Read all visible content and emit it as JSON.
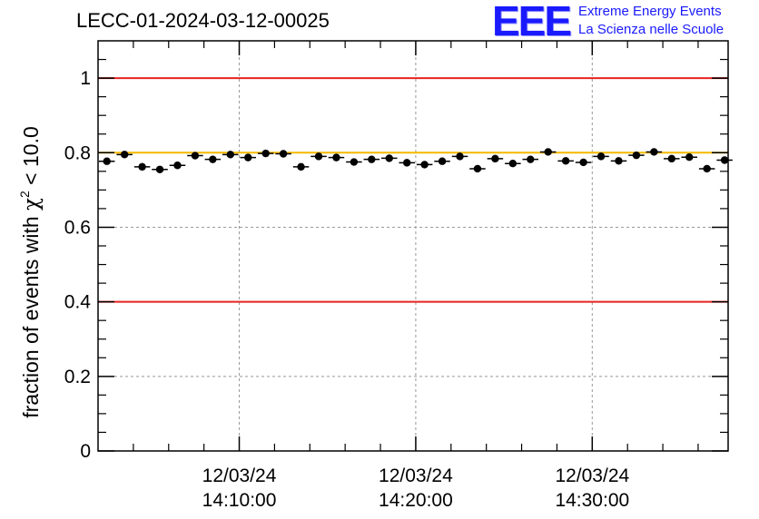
{
  "title": "LECC-01-2024-03-12-00025",
  "logo": {
    "mark": "EEE",
    "line1": "Extreme Energy Events",
    "line2": "La Scienza nelle Scuole"
  },
  "chart_data": {
    "type": "scatter",
    "title": "LECC-01-2024-03-12-00025",
    "ylabel": "fraction of events with χ² < 10.0",
    "ylabel_parts": {
      "prefix": "fraction of events with ",
      "symbol": "χ",
      "exponent": "2",
      "suffix": " < 10.0"
    },
    "ylim": [
      0,
      1.1
    ],
    "y_ticks": [
      "0",
      "0.2",
      "0.4",
      "0.6",
      "0.8",
      "1"
    ],
    "y_tick_values": [
      0,
      0.2,
      0.4,
      0.6,
      0.8,
      1
    ],
    "xlim_minutes": [
      0,
      35.7
    ],
    "x_ticks": [
      {
        "minute": 8,
        "date": "12/03/24",
        "time": "14:10:00"
      },
      {
        "minute": 18,
        "date": "12/03/24",
        "time": "14:20:00"
      },
      {
        "minute": 28,
        "date": "12/03/24",
        "time": "14:30:00"
      }
    ],
    "grid": true,
    "reference_lines": [
      {
        "y": 1.0,
        "color": "#e8231f"
      },
      {
        "y": 0.8,
        "color": "#f5b800"
      },
      {
        "y": 0.4,
        "color": "#e8231f"
      }
    ],
    "marker_color": "#000000",
    "series": [
      {
        "values": [
          0.777,
          0.795,
          0.762,
          0.755,
          0.766,
          0.792,
          0.782,
          0.795,
          0.787,
          0.798,
          0.797,
          0.762,
          0.79,
          0.787,
          0.775,
          0.782,
          0.785,
          0.773,
          0.768,
          0.777,
          0.79,
          0.757,
          0.784,
          0.771,
          0.782,
          0.802,
          0.778,
          0.774,
          0.79,
          0.778,
          0.793,
          0.802,
          0.784,
          0.788,
          0.757,
          0.78
        ],
        "errors": [
          0.006,
          0.006,
          0.006,
          0.006,
          0.006,
          0.006,
          0.006,
          0.006,
          0.006,
          0.006,
          0.006,
          0.006,
          0.006,
          0.006,
          0.006,
          0.006,
          0.006,
          0.006,
          0.006,
          0.006,
          0.006,
          0.006,
          0.006,
          0.006,
          0.006,
          0.006,
          0.006,
          0.006,
          0.006,
          0.006,
          0.006,
          0.006,
          0.006,
          0.006,
          0.006,
          0.006
        ]
      }
    ]
  }
}
